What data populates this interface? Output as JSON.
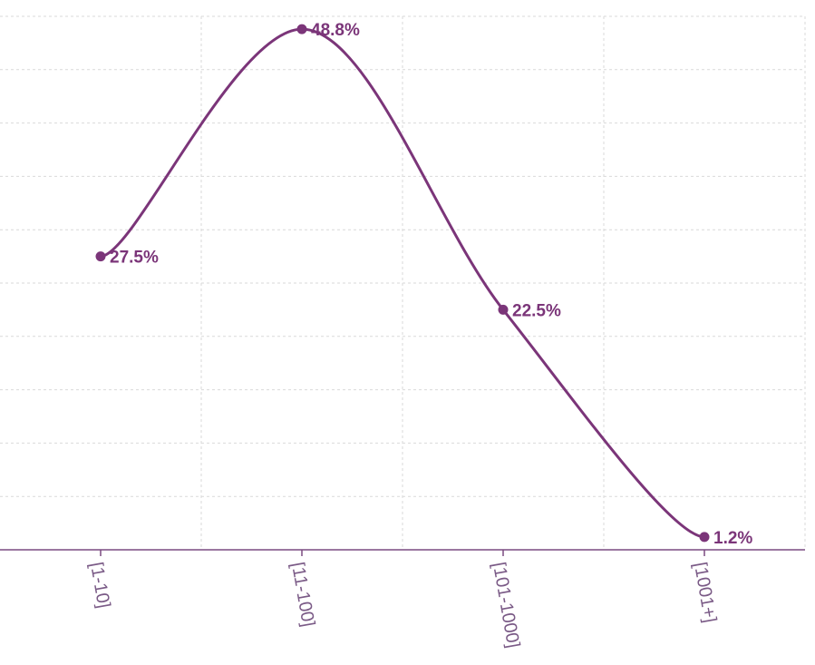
{
  "colors": {
    "series": "#7b3579",
    "grid": "#d9d9d9",
    "axis": "#7a4a80",
    "tick_text": "#7a5a86",
    "background": "#ffffff"
  },
  "chart_data": {
    "type": "line",
    "curve": "smooth",
    "categories": [
      "[1-10]",
      "[11-100]",
      "[101-1000]",
      "[1001+]"
    ],
    "series": [
      {
        "values": [
          27.5,
          48.8,
          22.5,
          1.2
        ],
        "labels": [
          "27.5%",
          "48.8%",
          "22.5%",
          "1.2%"
        ]
      }
    ],
    "ylim": [
      0,
      50
    ],
    "grid": true,
    "title": "",
    "xlabel": "",
    "ylabel": ""
  }
}
